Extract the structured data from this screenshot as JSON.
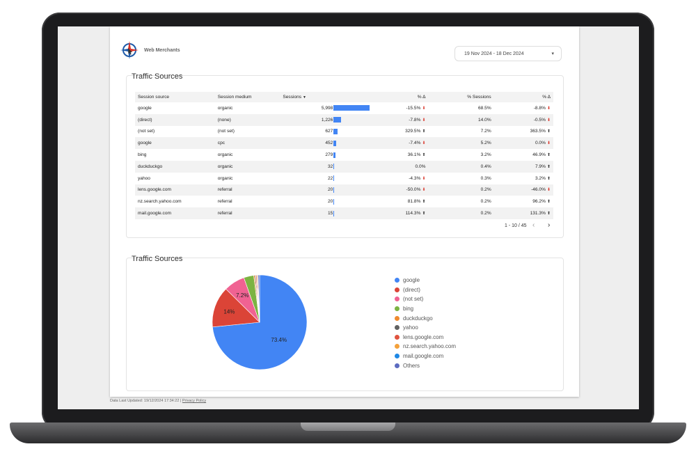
{
  "brand": {
    "name": "Web Merchants"
  },
  "date_range": {
    "label": "19 Nov 2024 - 18 Dec 2024",
    "caret": "▾"
  },
  "table_card": {
    "title": "Traffic Sources",
    "headers": [
      "Session source",
      "Session medium",
      "Sessions",
      "% Δ",
      "% Sessions",
      "% Δ"
    ],
    "sort_indicator": "▼",
    "rows": [
      {
        "source": "google",
        "medium": "organic",
        "sessions": "5,998",
        "sessions_value": 5998,
        "change": "-15.5%",
        "change_dir": "down",
        "pct": "68.5%",
        "pct_change": "-8.8%",
        "pct_change_dir": "down"
      },
      {
        "source": "(direct)",
        "medium": "(none)",
        "sessions": "1,226",
        "sessions_value": 1226,
        "change": "-7.8%",
        "change_dir": "down",
        "pct": "14.0%",
        "pct_change": "-0.5%",
        "pct_change_dir": "down"
      },
      {
        "source": "(not set)",
        "medium": "(not set)",
        "sessions": "627",
        "sessions_value": 627,
        "change": "329.5%",
        "change_dir": "up",
        "pct": "7.2%",
        "pct_change": "363.5%",
        "pct_change_dir": "up"
      },
      {
        "source": "google",
        "medium": "cpc",
        "sessions": "452",
        "sessions_value": 452,
        "change": "-7.4%",
        "change_dir": "down",
        "pct": "5.2%",
        "pct_change": "0.0%",
        "pct_change_dir": "down"
      },
      {
        "source": "bing",
        "medium": "organic",
        "sessions": "279",
        "sessions_value": 279,
        "change": "36.1%",
        "change_dir": "up",
        "pct": "3.2%",
        "pct_change": "46.9%",
        "pct_change_dir": "up"
      },
      {
        "source": "duckduckgo",
        "medium": "organic",
        "sessions": "32",
        "sessions_value": 32,
        "change": "0.0%",
        "change_dir": "",
        "pct": "0.4%",
        "pct_change": "7.9%",
        "pct_change_dir": "up"
      },
      {
        "source": "yahoo",
        "medium": "organic",
        "sessions": "22",
        "sessions_value": 22,
        "change": "-4.3%",
        "change_dir": "down",
        "pct": "0.3%",
        "pct_change": "3.2%",
        "pct_change_dir": "up"
      },
      {
        "source": "lens.google.com",
        "medium": "referral",
        "sessions": "20",
        "sessions_value": 20,
        "change": "-50.0%",
        "change_dir": "down",
        "pct": "0.2%",
        "pct_change": "-46.0%",
        "pct_change_dir": "down"
      },
      {
        "source": "nz.search.yahoo.com",
        "medium": "referral",
        "sessions": "20",
        "sessions_value": 20,
        "change": "81.8%",
        "change_dir": "up",
        "pct": "0.2%",
        "pct_change": "96.2%",
        "pct_change_dir": "up"
      },
      {
        "source": "mail.google.com",
        "medium": "referral",
        "sessions": "15",
        "sessions_value": 15,
        "change": "114.3%",
        "change_dir": "up",
        "pct": "0.2%",
        "pct_change": "131.3%",
        "pct_change_dir": "up"
      }
    ],
    "pagination": {
      "label": "1 - 10 / 45",
      "prev": "‹",
      "next": "›"
    }
  },
  "pie_card": {
    "title": "Traffic Sources"
  },
  "chart_data": {
    "type": "pie",
    "slices": [
      {
        "label": "google",
        "value": 73.4,
        "display": "73.4%",
        "color": "#4285f4"
      },
      {
        "label": "(direct)",
        "value": 14.0,
        "display": "14%",
        "color": "#db4437"
      },
      {
        "label": "(not set)",
        "value": 7.2,
        "display": "7.2%",
        "color": "#f06292"
      },
      {
        "label": "bing",
        "value": 3.4,
        "display": "",
        "color": "#7cb342"
      },
      {
        "label": "duckduckgo",
        "value": 0.4,
        "display": "",
        "color": "#ef8a2f"
      },
      {
        "label": "yahoo",
        "value": 0.3,
        "display": "",
        "color": "#616161"
      },
      {
        "label": "lens.google.com",
        "value": 0.3,
        "display": "",
        "color": "#e0533f"
      },
      {
        "label": "nz.search.yahoo.com",
        "value": 0.3,
        "display": "",
        "color": "#f4a13b"
      },
      {
        "label": "mail.google.com",
        "value": 0.2,
        "display": "",
        "color": "#1e88e5"
      },
      {
        "label": "Others",
        "value": 0.5,
        "display": "",
        "color": "#5c6bc0"
      }
    ]
  },
  "footer": {
    "updated": "Data Last Updated: 19/12/2024 17:34:22",
    "separator": "|",
    "privacy": "Privacy Policy"
  }
}
